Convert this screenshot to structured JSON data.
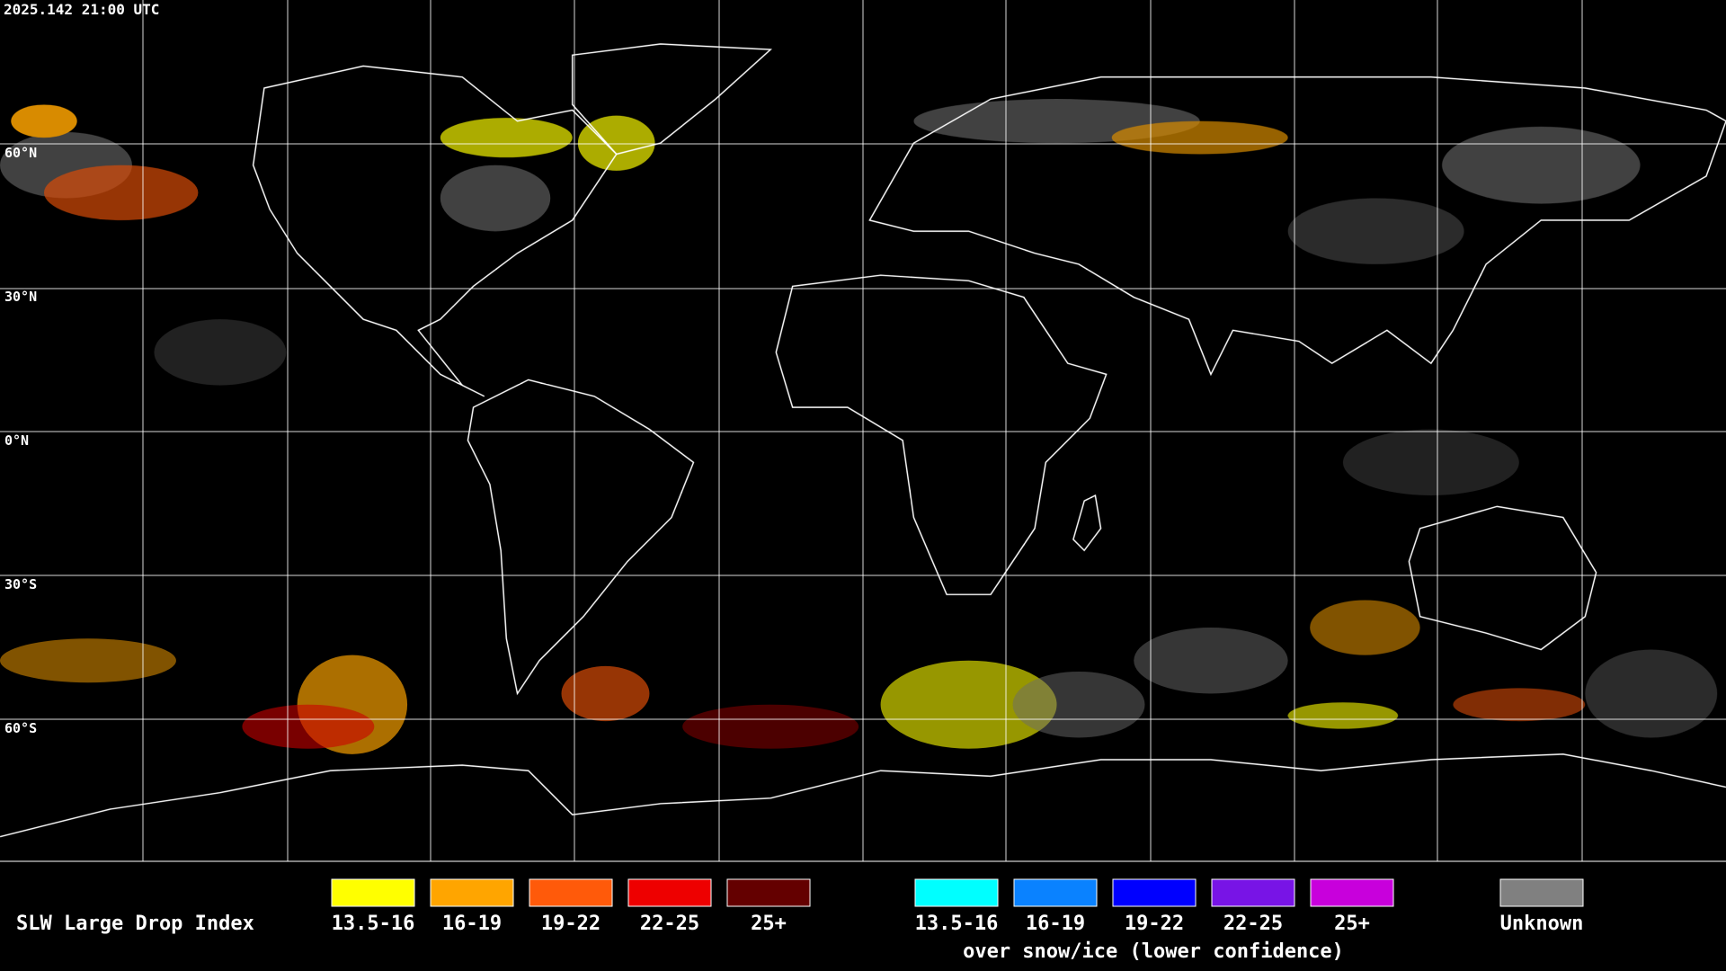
{
  "header": {
    "timestamp": "2025.142 21:00 UTC"
  },
  "map": {
    "latitude_labels": [
      "60°N",
      "30°N",
      "0°N",
      "30°S",
      "60°S"
    ]
  },
  "legend": {
    "title": "SLW Large Drop Index",
    "groups": [
      {
        "items": [
          {
            "label": "13.5-16",
            "color": "#ffff00"
          },
          {
            "label": "16-19",
            "color": "#ffa500"
          },
          {
            "label": "19-22",
            "color": "#ff5a0a"
          },
          {
            "label": "22-25",
            "color": "#ee0000"
          },
          {
            "label": "25+",
            "color": "#640000"
          }
        ]
      },
      {
        "items": [
          {
            "label": "13.5-16",
            "color": "#00ffff"
          },
          {
            "label": "16-19",
            "color": "#0a82ff"
          },
          {
            "label": "19-22",
            "color": "#0000ff"
          },
          {
            "label": "22-25",
            "color": "#7814e6"
          },
          {
            "label": "25+",
            "color": "#c800dc"
          }
        ],
        "caption": "over snow/ice (lower confidence)"
      },
      {
        "items": [
          {
            "label": "Unknown",
            "color": "#808080"
          }
        ]
      }
    ]
  }
}
